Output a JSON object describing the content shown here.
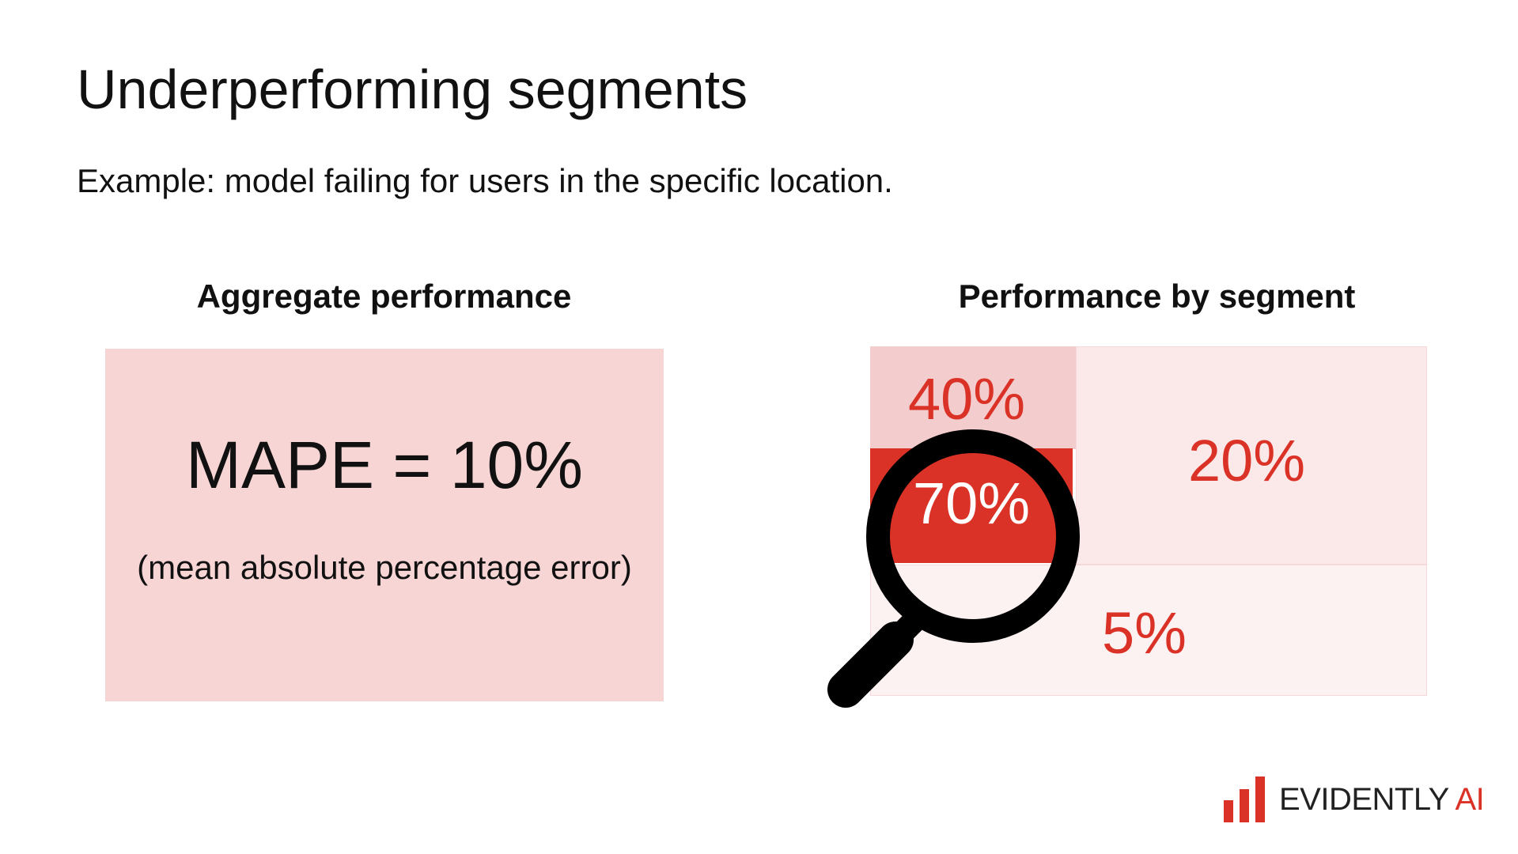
{
  "slide": {
    "title": "Underperforming segments",
    "subtitle": "Example: model failing for users in the specific location."
  },
  "aggregate": {
    "heading": "Aggregate performance",
    "metric": "MAPE = 10%",
    "note": "(mean absolute percentage error)"
  },
  "segments": {
    "heading": "Performance by segment",
    "values": [
      "40%",
      "70%",
      "20%",
      "5%"
    ]
  },
  "logo": {
    "word1": "EVIDENTLY",
    "word2": "AI"
  },
  "icons": [
    "magnifying-glass-icon",
    "evidently-logo-icon"
  ],
  "colors": {
    "accent_red": "#da3226",
    "pink_light": "#f7d5d5",
    "pink_lighter": "#fbe8e8",
    "pink_palest": "#fdf2f2"
  }
}
